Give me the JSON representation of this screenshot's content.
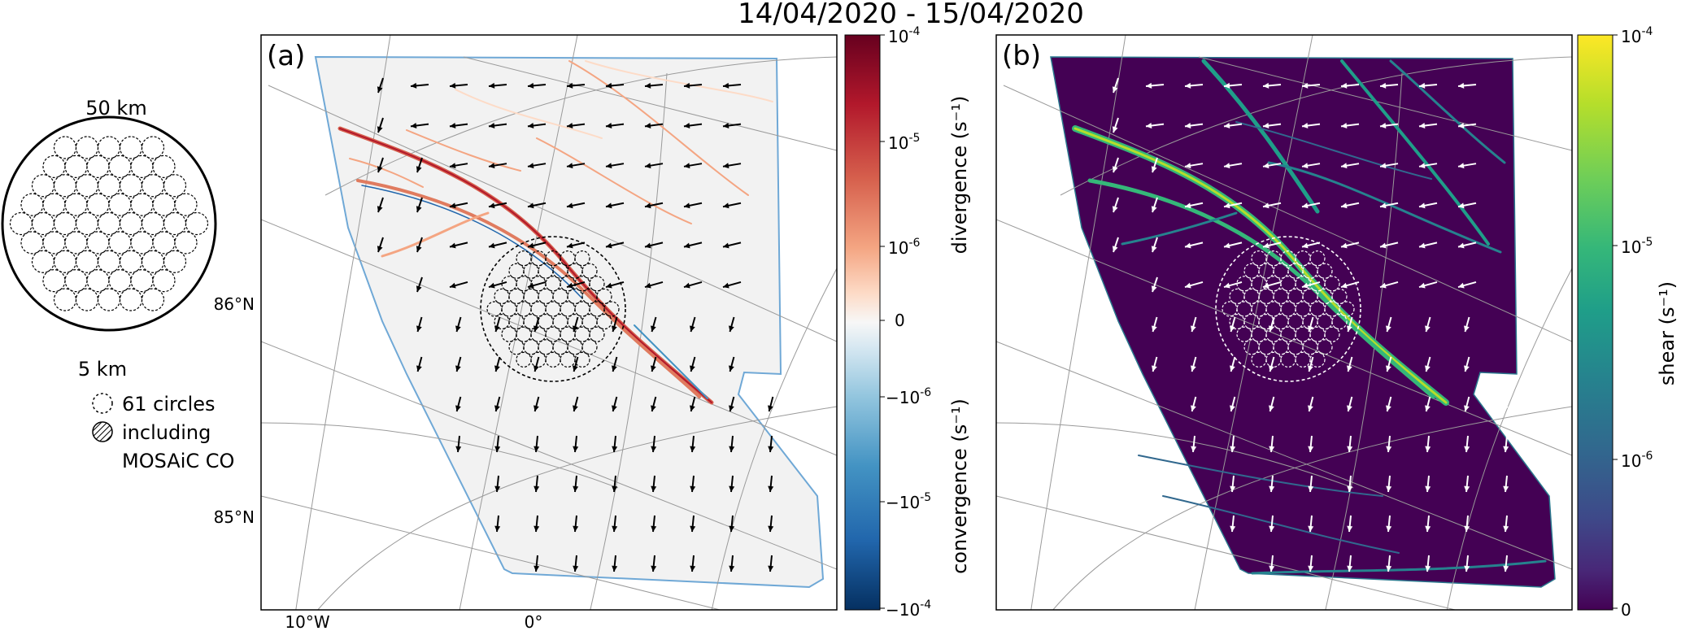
{
  "title": "14/04/2020 - 15/04/2020",
  "inset": {
    "outer_label": "50 km",
    "inner_label": "5 km",
    "legend_circles": "61 circles",
    "legend_including": "including",
    "legend_mosaic": "MOSAiC CO"
  },
  "panel_a": {
    "label": "(a)",
    "lat_labels": [
      "86°N",
      "85°N"
    ],
    "lon_labels": [
      "10°W",
      "0°"
    ],
    "colorbar": {
      "ticks": [
        "10^-4",
        "10^-5",
        "10^-6",
        "0",
        "−10^-6",
        "−10^-5",
        "−10^-4"
      ],
      "label_top": "divergence (s⁻¹)",
      "label_bottom": "convergence (s⁻¹)",
      "colors": [
        "#67001f",
        "#b2182b",
        "#d6604d",
        "#f4a582",
        "#fddbc7",
        "#f7f7f7",
        "#d1e5f0",
        "#92c5de",
        "#4393c3",
        "#2166ac",
        "#053061"
      ]
    },
    "arrow_color": "#000000",
    "ice_color": "#f2f2f2"
  },
  "panel_b": {
    "label": "(b)",
    "colorbar": {
      "ticks": [
        "10^-4",
        "10^-5",
        "10^-6",
        "0"
      ],
      "label": "shear (s⁻¹)",
      "colors": [
        "#fde725",
        "#b5de2b",
        "#6ece58",
        "#35b779",
        "#1f9e89",
        "#26828e",
        "#31688e",
        "#3e4989",
        "#482878",
        "#440154"
      ]
    },
    "arrow_color": "#ffffff",
    "ice_color": "#440154"
  }
}
